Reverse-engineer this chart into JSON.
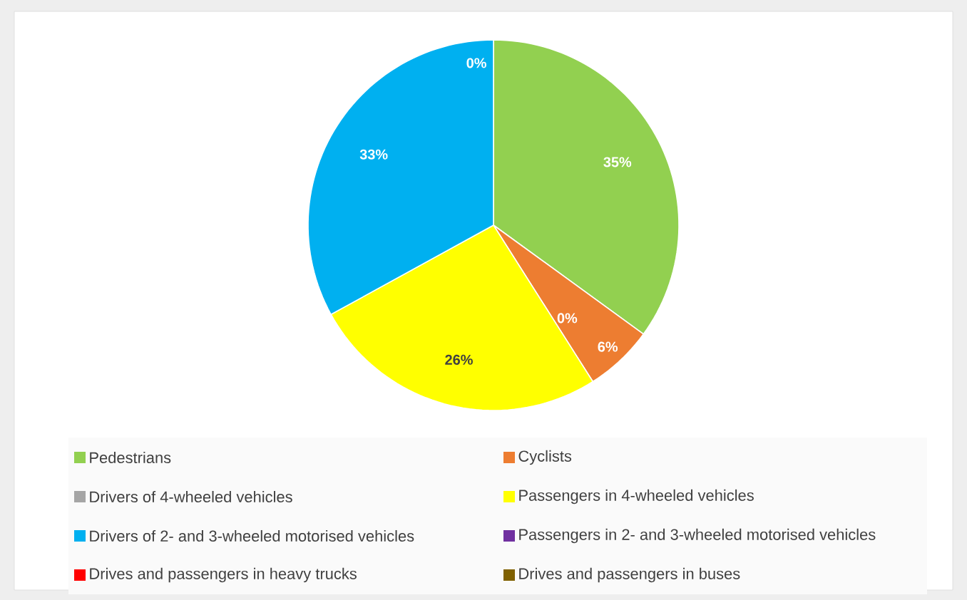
{
  "chart_data": {
    "type": "pie",
    "categories": [
      "Pedestrians",
      "Cyclists",
      "Drivers of 4-wheeled vehicles",
      "Passengers in 4-wheeled vehicles",
      "Drivers of 2- and 3-wheeled motorised vehicles",
      "Passengers in 2- and 3-wheeled motorised vehicles",
      "Drives and passengers in heavy trucks",
      "Drives and passengers in buses"
    ],
    "values": [
      35,
      6,
      0,
      26,
      33,
      0,
      0,
      0
    ],
    "value_labels": [
      "35%",
      "6%",
      "0%",
      "26%",
      "33%",
      null,
      null,
      "0%"
    ],
    "colors": [
      "#92d050",
      "#ed7d31",
      "#a5a5a5",
      "#ffff00",
      "#00b0f0",
      "#7030a0",
      "#ff0000",
      "#7f6000"
    ],
    "legend": "bottom"
  }
}
